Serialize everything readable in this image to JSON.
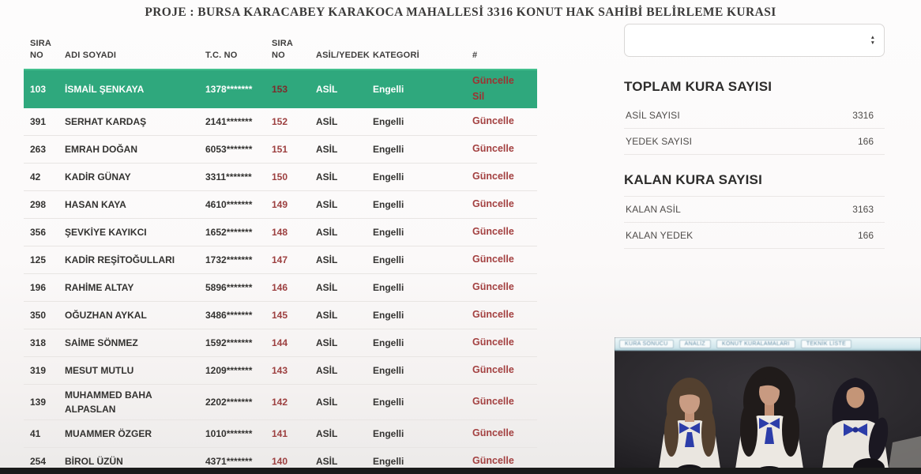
{
  "title": "PROJE : BURSA KARACABEY KARAKOCA MAHALLESİ 3316 KONUT HAK SAHİBİ BELİRLEME KURASI",
  "table": {
    "headers": [
      "SIRA NO",
      "ADI SOYADI",
      "T.C. NO",
      "SIRA NO",
      "ASİL/YEDEK",
      "KATEGORİ",
      "#"
    ],
    "rows": [
      {
        "sira_no": "103",
        "adi_soyadi": "İSMAİL ŞENKAYA",
        "tc_no": "1378*******",
        "kura_no": "153",
        "asil_yedek": "ASİL",
        "kategori": "Engelli",
        "actions": [
          "Güncelle",
          "Sil"
        ],
        "highlighted": true
      },
      {
        "sira_no": "391",
        "adi_soyadi": "SERHAT KARDAŞ",
        "tc_no": "2141*******",
        "kura_no": "152",
        "asil_yedek": "ASİL",
        "kategori": "Engelli",
        "actions": [
          "Güncelle"
        ],
        "highlighted": false
      },
      {
        "sira_no": "263",
        "adi_soyadi": "EMRAH DOĞAN",
        "tc_no": "6053*******",
        "kura_no": "151",
        "asil_yedek": "ASİL",
        "kategori": "Engelli",
        "actions": [
          "Güncelle"
        ],
        "highlighted": false
      },
      {
        "sira_no": "42",
        "adi_soyadi": "KADİR GÜNAY",
        "tc_no": "3311*******",
        "kura_no": "150",
        "asil_yedek": "ASİL",
        "kategori": "Engelli",
        "actions": [
          "Güncelle"
        ],
        "highlighted": false
      },
      {
        "sira_no": "298",
        "adi_soyadi": "HASAN KAYA",
        "tc_no": "4610*******",
        "kura_no": "149",
        "asil_yedek": "ASİL",
        "kategori": "Engelli",
        "actions": [
          "Güncelle"
        ],
        "highlighted": false
      },
      {
        "sira_no": "356",
        "adi_soyadi": "ŞEVKİYE KAYIKCI",
        "tc_no": "1652*******",
        "kura_no": "148",
        "asil_yedek": "ASİL",
        "kategori": "Engelli",
        "actions": [
          "Güncelle"
        ],
        "highlighted": false
      },
      {
        "sira_no": "125",
        "adi_soyadi": "KADİR REŞİTOĞULLARI",
        "tc_no": "1732*******",
        "kura_no": "147",
        "asil_yedek": "ASİL",
        "kategori": "Engelli",
        "actions": [
          "Güncelle"
        ],
        "highlighted": false
      },
      {
        "sira_no": "196",
        "adi_soyadi": "RAHİME ALTAY",
        "tc_no": "5896*******",
        "kura_no": "146",
        "asil_yedek": "ASİL",
        "kategori": "Engelli",
        "actions": [
          "Güncelle"
        ],
        "highlighted": false
      },
      {
        "sira_no": "350",
        "adi_soyadi": "OĞUZHAN AYKAL",
        "tc_no": "3486*******",
        "kura_no": "145",
        "asil_yedek": "ASİL",
        "kategori": "Engelli",
        "actions": [
          "Güncelle"
        ],
        "highlighted": false
      },
      {
        "sira_no": "318",
        "adi_soyadi": "SAİME SÖNMEZ",
        "tc_no": "1592*******",
        "kura_no": "144",
        "asil_yedek": "ASİL",
        "kategori": "Engelli",
        "actions": [
          "Güncelle"
        ],
        "highlighted": false
      },
      {
        "sira_no": "319",
        "adi_soyadi": "MESUT MUTLU",
        "tc_no": "1209*******",
        "kura_no": "143",
        "asil_yedek": "ASİL",
        "kategori": "Engelli",
        "actions": [
          "Güncelle"
        ],
        "highlighted": false
      },
      {
        "sira_no": "139",
        "adi_soyadi": "MUHAMMED BAHA ALPASLAN",
        "tc_no": "2202*******",
        "kura_no": "142",
        "asil_yedek": "ASİL",
        "kategori": "Engelli",
        "actions": [
          "Güncelle"
        ],
        "highlighted": false
      },
      {
        "sira_no": "41",
        "adi_soyadi": "MUAMMER ÖZGER",
        "tc_no": "1010*******",
        "kura_no": "141",
        "asil_yedek": "ASİL",
        "kategori": "Engelli",
        "actions": [
          "Güncelle"
        ],
        "highlighted": false
      },
      {
        "sira_no": "254",
        "adi_soyadi": "BİROL ÜZÜN",
        "tc_no": "4371*******",
        "kura_no": "140",
        "asil_yedek": "ASİL",
        "kategori": "Engelli",
        "actions": [
          "Güncelle"
        ],
        "highlighted": false
      }
    ]
  },
  "side_panel": {
    "spinner_value": "",
    "toplam": {
      "heading": "TOPLAM KURA SAYISI",
      "rows": [
        {
          "label": "ASİL SAYISI",
          "value": "3316"
        },
        {
          "label": "YEDEK SAYISI",
          "value": "166"
        }
      ]
    },
    "kalan": {
      "heading": "KALAN KURA SAYISI",
      "rows": [
        {
          "label": "KALAN ASİL",
          "value": "3163"
        },
        {
          "label": "KALAN YEDEK",
          "value": "166"
        }
      ]
    }
  },
  "video_overlay": {
    "tabs": [
      "KURA SONUCU",
      "ANALİZ",
      "KONUT KURALAMALARI",
      "TEKNİK LİSTE"
    ]
  },
  "colors": {
    "highlight_green": "#2fa87d",
    "highlight_green_border": "#43c08e",
    "action_red": "#a34040",
    "kura_red": "#9c3f3f",
    "tab_blue": "#4e7d99"
  }
}
